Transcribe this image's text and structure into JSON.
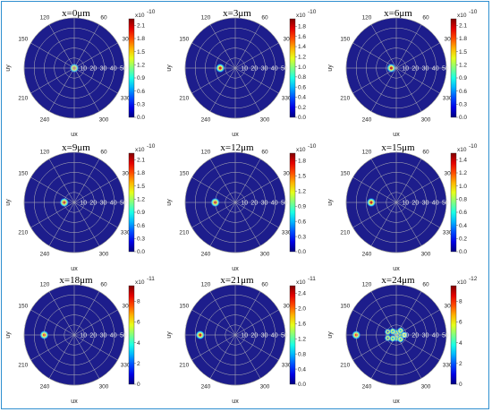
{
  "chart_data": [
    {
      "type": "heatmap",
      "subtype": "polar",
      "title": "x=0μm",
      "xlabel": "ux",
      "ylabel": "uy",
      "angle_labels": [
        "30",
        "60",
        "120",
        "150",
        "210",
        "240",
        "300",
        "330"
      ],
      "radial_labels": [
        "10",
        "20",
        "30",
        "40",
        "50"
      ],
      "colorbar": {
        "exponent": "x10",
        "power": "-10",
        "ticks": [
          "0.0",
          "0.3",
          "0.6",
          "0.9",
          "1.2",
          "1.5",
          "1.8",
          "2.1"
        ],
        "max": 2.25
      },
      "spots": [
        {
          "r": 0,
          "theta": 0,
          "value": 2.1
        }
      ]
    },
    {
      "type": "heatmap",
      "subtype": "polar",
      "title": "x=3μm",
      "xlabel": "ux",
      "ylabel": "uy",
      "angle_labels": [
        "30",
        "60",
        "120",
        "150",
        "210",
        "240",
        "300",
        "330"
      ],
      "radial_labels": [
        "10",
        "20",
        "30",
        "40",
        "50"
      ],
      "colorbar": {
        "exponent": "x10",
        "power": "-10",
        "ticks": [
          "0.0",
          "0.2",
          "0.4",
          "0.6",
          "0.8",
          "1.0",
          "1.2",
          "1.4",
          "1.6",
          "1.8"
        ],
        "max": 1.95
      },
      "spots": [
        {
          "r": 15,
          "theta": 180,
          "value": 1.8
        }
      ]
    },
    {
      "type": "heatmap",
      "subtype": "polar",
      "title": "x=6μm",
      "xlabel": "ux",
      "ylabel": "uy",
      "angle_labels": [
        "30",
        "60",
        "120",
        "150",
        "210",
        "240",
        "300",
        "330"
      ],
      "radial_labels": [
        "10",
        "20",
        "30",
        "40",
        "50"
      ],
      "colorbar": {
        "exponent": "x10",
        "power": "-10",
        "ticks": [
          "0.0",
          "0.3",
          "0.6",
          "0.9",
          "1.2",
          "1.5",
          "1.8",
          "2.1"
        ],
        "max": 2.25
      },
      "spots": [
        {
          "r": 5,
          "theta": 180,
          "value": 2.1
        }
      ]
    },
    {
      "type": "heatmap",
      "subtype": "polar",
      "title": "x=9μm",
      "xlabel": "ux",
      "ylabel": "uy",
      "angle_labels": [
        "30",
        "60",
        "120",
        "150",
        "210",
        "240",
        "300",
        "330"
      ],
      "radial_labels": [
        "10",
        "20",
        "30",
        "40",
        "50"
      ],
      "colorbar": {
        "exponent": "x10",
        "power": "-10",
        "ticks": [
          "0.0",
          "0.3",
          "0.6",
          "0.9",
          "1.2",
          "1.5",
          "1.8",
          "2.1"
        ],
        "max": 2.25
      },
      "spots": [
        {
          "r": 10,
          "theta": 180,
          "value": 2.1
        }
      ]
    },
    {
      "type": "heatmap",
      "subtype": "polar",
      "title": "x=12μm",
      "xlabel": "ux",
      "ylabel": "uy",
      "angle_labels": [
        "30",
        "60",
        "120",
        "150",
        "210",
        "240",
        "300",
        "330"
      ],
      "radial_labels": [
        "10",
        "20",
        "30",
        "40",
        "50"
      ],
      "colorbar": {
        "exponent": "x10",
        "power": "-10",
        "ticks": [
          "0.0",
          "0.3",
          "0.6",
          "0.9",
          "1.2",
          "1.5",
          "1.8"
        ],
        "max": 1.95
      },
      "spots": [
        {
          "r": 20,
          "theta": 180,
          "value": 1.8
        }
      ]
    },
    {
      "type": "heatmap",
      "subtype": "polar",
      "title": "x=15μm",
      "xlabel": "ux",
      "ylabel": "uy",
      "angle_labels": [
        "30",
        "60",
        "120",
        "150",
        "210",
        "240",
        "300",
        "330"
      ],
      "radial_labels": [
        "10",
        "20",
        "30",
        "40",
        "50"
      ],
      "colorbar": {
        "exponent": "x10",
        "power": "-10",
        "ticks": [
          "0.0",
          "0.2",
          "0.4",
          "0.6",
          "0.8",
          "1.0",
          "1.2",
          "1.4"
        ],
        "max": 1.5
      },
      "spots": [
        {
          "r": 25,
          "theta": 180,
          "value": 1.4
        }
      ]
    },
    {
      "type": "heatmap",
      "subtype": "polar",
      "title": "x=18μm",
      "xlabel": "ux",
      "ylabel": "uy",
      "angle_labels": [
        "30",
        "60",
        "120",
        "150",
        "210",
        "240",
        "300",
        "330"
      ],
      "radial_labels": [
        "10",
        "20",
        "30",
        "40",
        "50"
      ],
      "colorbar": {
        "exponent": "x10",
        "power": "-11",
        "ticks": [
          "0",
          "2",
          "4",
          "6",
          "8"
        ],
        "max": 9.5
      },
      "spots": [
        {
          "r": 30,
          "theta": 180,
          "value": 8
        }
      ]
    },
    {
      "type": "heatmap",
      "subtype": "polar",
      "title": "x=21μm",
      "xlabel": "ux",
      "ylabel": "uy",
      "angle_labels": [
        "30",
        "60",
        "120",
        "150",
        "210",
        "240",
        "300",
        "330"
      ],
      "radial_labels": [
        "10",
        "20",
        "30",
        "40",
        "50"
      ],
      "colorbar": {
        "exponent": "x10",
        "power": "-11",
        "ticks": [
          "0.0",
          "0.4",
          "0.8",
          "1.2",
          "1.6",
          "2.0",
          "2.4"
        ],
        "max": 2.6
      },
      "spots": [
        {
          "r": 35,
          "theta": 180,
          "value": 2.4
        }
      ]
    },
    {
      "type": "heatmap",
      "subtype": "polar",
      "title": "x=24μm",
      "xlabel": "ux",
      "ylabel": "uy",
      "angle_labels": [
        "30",
        "60",
        "120",
        "150",
        "210",
        "240",
        "300",
        "330"
      ],
      "radial_labels": [
        "10",
        "20",
        "30",
        "40",
        "50"
      ],
      "colorbar": {
        "exponent": "x10",
        "power": "-12",
        "ticks": [
          "0",
          "2",
          "4",
          "6",
          "8"
        ],
        "max": 9.5
      },
      "spots": [
        {
          "r": 40,
          "theta": 180,
          "value": 8
        },
        {
          "r": 4,
          "theta": 0,
          "value": 5
        },
        {
          "r": 2,
          "theta": 90,
          "value": 4
        },
        {
          "r": 3,
          "theta": 270,
          "value": 4
        },
        {
          "r": 5,
          "theta": 135,
          "value": 3
        },
        {
          "r": 5,
          "theta": 225,
          "value": 3
        },
        {
          "r": 6,
          "theta": 45,
          "value": 3
        },
        {
          "r": 6,
          "theta": 315,
          "value": 3
        },
        {
          "r": 8,
          "theta": 0,
          "value": 3
        },
        {
          "r": 9,
          "theta": 160,
          "value": 2
        },
        {
          "r": 9,
          "theta": 200,
          "value": 2
        }
      ]
    }
  ]
}
